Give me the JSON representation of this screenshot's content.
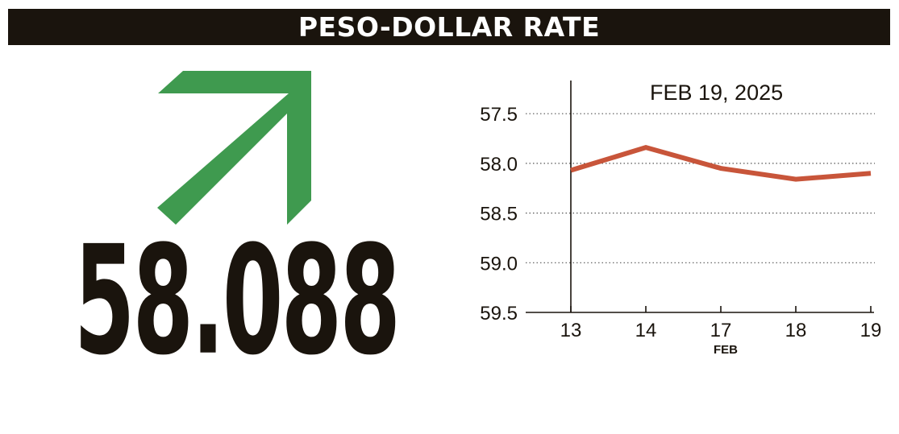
{
  "header": {
    "title": "PESO-DOLLAR RATE"
  },
  "indicator": {
    "icon": "arrow-up-right-icon",
    "color": "#3f9a4f",
    "value": "58.088"
  },
  "chart_data": {
    "type": "line",
    "title": "FEB 19, 2025",
    "categories": [
      "13",
      "14",
      "17",
      "18",
      "19"
    ],
    "x_group_label": "FEB",
    "series": [
      {
        "values": [
          58.07,
          57.84,
          58.05,
          58.16,
          58.1
        ],
        "color": "#c8553a"
      }
    ],
    "ylim": [
      57.15,
      59.5
    ],
    "y_ticks": [
      "57.5",
      "58.0",
      "58.5",
      "59.0",
      "59.5"
    ],
    "y_tick_values": [
      57.5,
      58.0,
      58.5,
      59.0,
      59.5
    ],
    "y_axis_inverted": true,
    "grid": true,
    "grid_style": "dotted",
    "axis_color": "#1a140d",
    "legend": "none"
  }
}
